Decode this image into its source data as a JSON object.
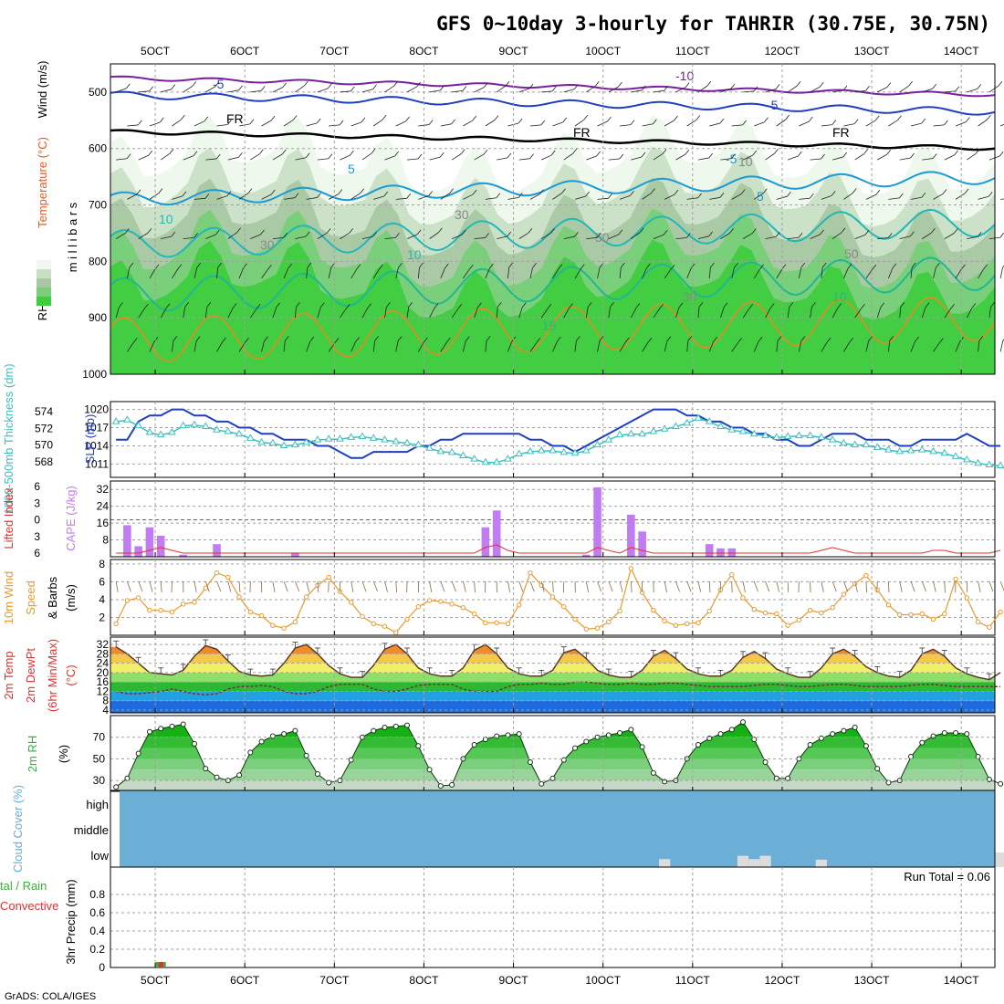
{
  "title": "GFS 0~10day 3-hourly for TAHRIR (30.75E, 30.75N)",
  "footer": "GrADS: COLA/IGES",
  "colors": {
    "rh": [
      "#eef8ec",
      "#c9e0c6",
      "#a8c8a4",
      "#77cf77",
      "#3fcc3f"
    ],
    "slp": "#1f3fbf",
    "thickness": "#3cc0c0",
    "cape": "#c07cf0",
    "lifted": "#e03030",
    "wind10": "#e89a30",
    "temp_band": [
      "#1e6be0",
      "#23a0e0",
      "#2bb833",
      "#8ee06a",
      "#f0f06a",
      "#f5c84a",
      "#f08a2a",
      "#d85a10"
    ],
    "rh2m": "#33b533",
    "cloud": "#6baed6",
    "precip_total": "#3ab03a",
    "precip_conv": "#e03030"
  },
  "chart_data": {
    "type": "meteogram",
    "x_axis": {
      "tick_labels": [
        "5OCT",
        "6OCT",
        "7OCT",
        "8OCT",
        "9OCT",
        "10OCT",
        "11OCT",
        "12OCT",
        "13OCT",
        "14OCT"
      ],
      "tick_days": [
        5,
        6,
        7,
        8,
        9,
        10,
        11,
        12,
        13,
        14
      ],
      "range_days": [
        4.5,
        14.375
      ],
      "step_hours": 3
    },
    "panels": [
      {
        "id": "upper_air",
        "ylabel_parts": [
          "RH (%)",
          "Temperature (°C)",
          "Wind (m/s)"
        ],
        "ylabel_units": "m i l l i b a r s",
        "yticks": [
          500,
          600,
          700,
          800,
          900,
          1000
        ],
        "ylim": [
          1000,
          450
        ],
        "isotherm_labels": [
          "-10",
          "-5",
          "-5",
          "FR",
          "FR",
          "FR",
          "-5",
          "5",
          "5",
          "10",
          "10",
          "10",
          "15",
          "10",
          "30",
          "30",
          "50",
          "30",
          "50"
        ]
      },
      {
        "id": "slp_thickness",
        "ylabel_left": "1000-500mb Thickness (dm)",
        "ylabel_right": "SLP (mb)",
        "thickness_ticks": [
          574,
          572,
          570,
          568
        ],
        "slp_ticks": [
          1020,
          1017,
          1014,
          1011
        ],
        "slp": [
          1015,
          1015,
          1018,
          1019,
          1019,
          1020,
          1020,
          1019,
          1019,
          1018,
          1018,
          1017,
          1017,
          1016,
          1016,
          1015,
          1015,
          1015,
          1014,
          1014,
          1013,
          1012,
          1012,
          1013,
          1013,
          1013,
          1013,
          1014,
          1014,
          1015,
          1015,
          1016,
          1016,
          1016,
          1016,
          1016,
          1016,
          1015,
          1015,
          1014,
          1014,
          1013,
          1014,
          1015,
          1016,
          1017,
          1018,
          1019,
          1020,
          1020,
          1020,
          1019,
          1019,
          1018,
          1018,
          1017,
          1017,
          1016,
          1016,
          1015,
          1015,
          1014,
          1014,
          1015,
          1016,
          1016,
          1016,
          1015,
          1015,
          1015,
          1014,
          1014,
          1015,
          1015,
          1015,
          1015,
          1016,
          1015,
          1014,
          1014
        ],
        "thickness": [
          572.8,
          573.0,
          572.3,
          571.5,
          571.2,
          571.5,
          572.3,
          572.4,
          572.2,
          571.8,
          571.6,
          571.3,
          570.8,
          570.3,
          570.2,
          569.9,
          570.0,
          570.3,
          570.6,
          570.7,
          570.7,
          570.9,
          571.0,
          570.8,
          570.6,
          570.4,
          570.2,
          570.0,
          569.6,
          569.2,
          569.1,
          568.7,
          568.3,
          567.9,
          567.9,
          568.3,
          568.9,
          569.2,
          569.3,
          569.3,
          569.1,
          569.0,
          569.3,
          570.0,
          570.6,
          571.2,
          571.3,
          571.3,
          571.6,
          571.9,
          572.2,
          572.6,
          573.2,
          572.8,
          572.2,
          571.8,
          571.6,
          571.3,
          571.1,
          570.9,
          571.0,
          571.1,
          571.1,
          570.9,
          570.6,
          570.2,
          570.0,
          570.0,
          569.7,
          569.4,
          569.2,
          569.3,
          569.4,
          569.2,
          569.0,
          568.6,
          568.2,
          567.8,
          567.6,
          567.5
        ]
      },
      {
        "id": "cape_li",
        "ylabel_left": "Lifted Index",
        "ylabel_right": "CAPE (J/kg)",
        "li_ticks": [
          -6,
          -3,
          0,
          3,
          6
        ],
        "cape_ticks": [
          32,
          24,
          16,
          8
        ],
        "cape": [
          0,
          15,
          5,
          14,
          10,
          0,
          1,
          0,
          0,
          6,
          0,
          0,
          0,
          0,
          0,
          0,
          2,
          0,
          0,
          0,
          0,
          0,
          0,
          0,
          0,
          0,
          0,
          0,
          0,
          0,
          0,
          0,
          0,
          14,
          22,
          0,
          0,
          0,
          0,
          0,
          0,
          0,
          1,
          33,
          0,
          0,
          20,
          12,
          0,
          0,
          0,
          0,
          0,
          6,
          4,
          4,
          0,
          0,
          0,
          0,
          0,
          0,
          0,
          0,
          0,
          0,
          0,
          0,
          0,
          0,
          0,
          0,
          0,
          0,
          0,
          0,
          0,
          0,
          0,
          0
        ],
        "lifted_index": [
          6,
          6,
          6,
          5.5,
          5,
          5.5,
          6,
          6,
          6,
          6,
          6,
          6,
          6,
          6,
          6,
          6,
          6,
          6,
          6,
          6,
          6,
          6,
          6,
          6,
          6,
          6,
          6,
          6,
          6,
          6,
          6,
          6,
          6,
          5,
          4.5,
          5.5,
          6,
          6,
          6,
          6,
          6,
          6,
          6,
          5,
          5.5,
          6,
          5,
          5.5,
          6,
          6,
          6,
          6,
          6,
          6,
          6,
          6,
          6,
          6,
          6,
          6,
          6,
          6,
          6,
          5.5,
          5,
          5.5,
          6,
          6,
          6,
          6,
          6,
          6,
          6,
          5.5,
          5.5,
          6,
          6,
          6,
          6,
          5.5
        ]
      },
      {
        "id": "wind10m",
        "ylabel": "10m Wind Speed & Barbs (m/s)",
        "yticks": [
          2,
          4,
          6,
          8
        ],
        "speed": [
          1.3,
          3.9,
          4.2,
          2.8,
          2.8,
          2.6,
          3.5,
          3.7,
          5.3,
          7.0,
          6.5,
          4.3,
          2.6,
          2.2,
          1.1,
          0.8,
          1.5,
          4.3,
          5.6,
          6.5,
          4.9,
          3.7,
          2.1,
          1.3,
          1.0,
          0.3,
          1.8,
          3.2,
          3.9,
          3.8,
          3.5,
          3.1,
          2.4,
          1.4,
          1.4,
          1.3,
          3.4,
          7.0,
          5.6,
          4.3,
          3.2,
          1.8,
          0.7,
          0.8,
          1.5,
          2.7,
          7.5,
          4.8,
          2.8,
          1.6,
          1.1,
          1.3,
          1.4,
          2.7,
          5.1,
          6.8,
          4.2,
          2.9,
          2.5,
          2.4,
          1.1,
          1.7,
          2.8,
          2.5,
          3.1,
          4.6,
          5.8,
          6.7,
          5.1,
          3.4,
          2.3,
          2.3,
          2.4,
          1.8,
          2.4,
          6.3,
          4.2,
          1.5,
          0.9,
          2.6
        ]
      },
      {
        "id": "temp2m",
        "ylabel": "2m Temp 2m DewPt (6hr Min/Max) (°C)",
        "yticks": [
          4,
          8,
          12,
          16,
          20,
          24,
          28,
          32
        ],
        "ytick_labels": [
          "4",
          "8",
          "12",
          "16",
          "20",
          "24",
          "28",
          "32"
        ],
        "temperature": [
          31,
          28,
          24,
          20,
          19.5,
          19,
          21,
          27,
          31.5,
          30,
          25,
          20.5,
          19,
          18.5,
          19,
          24,
          30.5,
          32,
          28,
          23,
          19.5,
          18,
          18,
          23,
          30,
          32,
          28,
          22,
          19.5,
          18.5,
          18.5,
          22,
          29.5,
          32,
          28,
          22,
          19.5,
          18.5,
          18.5,
          21,
          28.5,
          30,
          26,
          21,
          19,
          18,
          18,
          21,
          27,
          29.5,
          26,
          21.5,
          19.5,
          18.5,
          18.5,
          21,
          26.5,
          29,
          26,
          21.5,
          19.5,
          18,
          18,
          22,
          28,
          30,
          27,
          22.5,
          20,
          18.5,
          18,
          21,
          28,
          30,
          27,
          22,
          19.5,
          18,
          17,
          20
        ],
        "dewpoint": [
          12,
          11,
          11,
          11.5,
          12,
          13,
          12,
          11,
          10.5,
          11,
          13,
          14,
          14,
          14.5,
          14,
          12,
          11,
          11,
          12,
          14,
          15,
          15,
          15,
          13,
          12,
          12,
          13,
          14.5,
          15,
          15,
          15,
          13,
          12,
          12,
          12,
          14,
          15,
          15,
          15.5,
          15,
          15,
          16,
          16,
          15.5,
          15,
          15,
          15.5,
          15,
          15,
          15.5,
          15.5,
          15,
          14.5,
          14,
          14,
          14,
          14,
          14.5,
          15,
          15,
          14.5,
          14,
          14,
          14.5,
          15,
          15,
          14.5,
          14,
          14,
          14,
          14,
          14.5,
          15,
          15,
          14.5,
          14,
          14,
          14,
          14,
          14
        ]
      },
      {
        "id": "rh2m",
        "ylabel": "2m RH (%)",
        "yticks": [
          30,
          50,
          70
        ],
        "ylim": [
          20,
          90
        ],
        "rh": [
          24,
          32,
          55,
          75,
          78,
          80,
          82,
          64,
          41,
          33,
          30,
          35,
          56,
          66,
          71,
          73,
          76,
          53,
          36,
          28,
          30,
          49,
          70,
          76,
          79,
          80,
          81,
          62,
          40,
          25,
          26,
          50,
          63,
          68,
          71,
          72,
          73,
          47,
          27,
          32,
          49,
          60,
          66,
          70,
          72,
          74,
          77,
          61,
          37,
          29,
          30,
          50,
          63,
          69,
          73,
          77,
          84,
          68,
          47,
          32,
          32,
          50,
          63,
          69,
          73,
          76,
          79,
          62,
          41,
          28,
          30,
          52,
          65,
          71,
          74,
          74,
          73,
          52,
          31,
          27
        ]
      },
      {
        "id": "cloud",
        "ylabel": "Cloud Cover (%)",
        "layer_labels": [
          "high",
          "middle",
          "low"
        ],
        "low_gap_bins": [
          49,
          56,
          57,
          58,
          63,
          79
        ],
        "low_gap_depth": [
          0.4,
          0.7,
          0.4,
          0.7,
          0.35,
          1.0
        ]
      },
      {
        "id": "precip",
        "ylabel": "3hr Precip (mm)",
        "legend": [
          "Total / Rain",
          "Convective"
        ],
        "legend_clip": [
          "tal / Rain",
          "Convective"
        ],
        "yticks": [
          0,
          0.2,
          0.4,
          0.6,
          0.8
        ],
        "ytick_labels": [
          "0",
          "0.2",
          "0.4",
          "0.6",
          "0.8"
        ],
        "ylim": [
          0,
          1.0
        ],
        "run_total_label": "Run Total = 0.06",
        "precip_total": [
          {
            "bin": 4,
            "value": 0.06
          }
        ],
        "precip_conv": [
          {
            "bin": 4,
            "value": 0.06
          }
        ]
      }
    ]
  }
}
